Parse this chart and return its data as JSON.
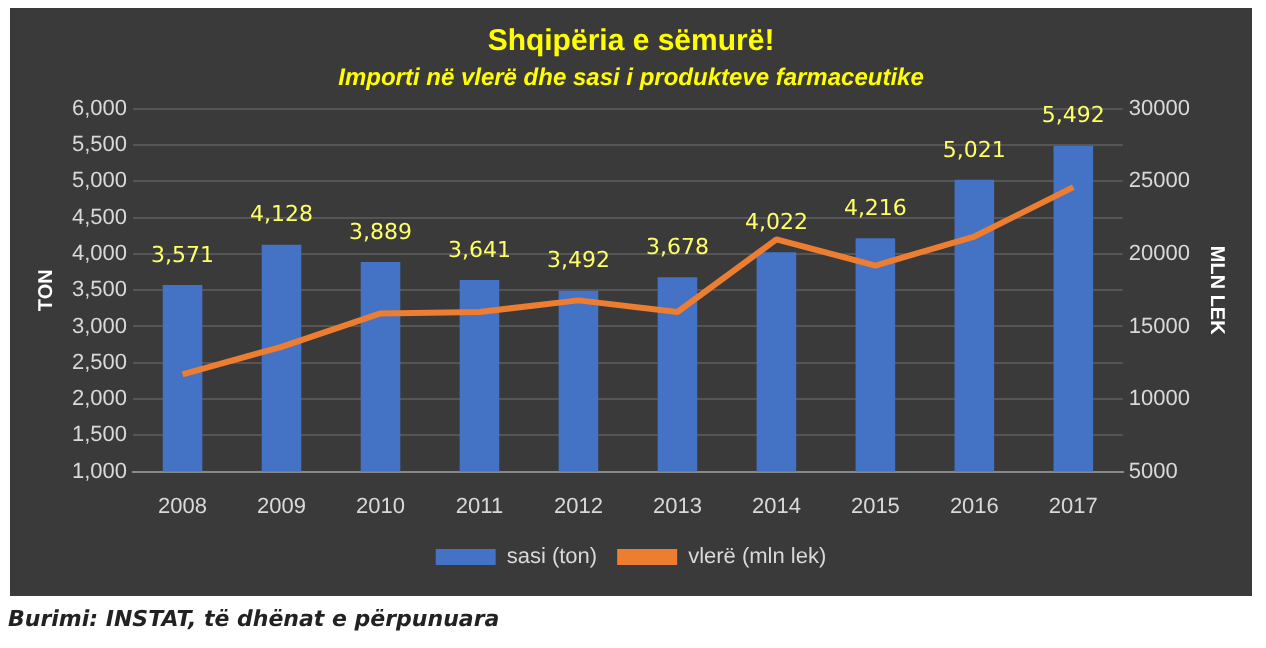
{
  "chart_data": {
    "type": "bar",
    "title": "Shqipëria e sëmurë!",
    "subtitle": "Importi në vlerë dhe sasi i produkteve farmaceutike",
    "ylabel": "TON",
    "y2label": "MLN LEK",
    "categories": [
      "2008",
      "2009",
      "2010",
      "2011",
      "2012",
      "2013",
      "2014",
      "2015",
      "2016",
      "2017"
    ],
    "series": [
      {
        "name": "sasi (ton)",
        "color": "#4472c4",
        "values": [
          3571,
          4128,
          3889,
          3641,
          3492,
          3678,
          4022,
          4216,
          5021,
          5492
        ],
        "value_labels": [
          "3,571",
          "4,128",
          "3,889",
          "3,641",
          "3,492",
          "3,678",
          "4,022",
          "4,216",
          "5,021",
          "5,492"
        ]
      },
      {
        "name": "vlerë (mln lek)",
        "type": "line",
        "axis": "y2",
        "color": "#ed7d31",
        "values": [
          11700,
          13600,
          15900,
          16000,
          16800,
          16000,
          21000,
          19200,
          21200,
          24600
        ]
      }
    ],
    "ylim": [
      1000,
      6000
    ],
    "yticks": [
      {
        "value": 1000,
        "label": "1,000"
      },
      {
        "value": 1500,
        "label": "1,500"
      },
      {
        "value": 2000,
        "label": "2,000"
      },
      {
        "value": 2500,
        "label": "2,500"
      },
      {
        "value": 3000,
        "label": "3,000"
      },
      {
        "value": 3500,
        "label": "3,500"
      },
      {
        "value": 4000,
        "label": "4,000"
      },
      {
        "value": 4500,
        "label": "4,500"
      },
      {
        "value": 5000,
        "label": "5,000"
      },
      {
        "value": 5500,
        "label": "5,500"
      },
      {
        "value": 6000,
        "label": "6,000"
      }
    ],
    "y2lim": [
      5000,
      30000
    ],
    "y2ticks": [
      5000,
      10000,
      15000,
      20000,
      25000,
      30000
    ],
    "grid": "y",
    "legend": "bottom",
    "marker": "none",
    "annotations": [
      "Burimi: INSTAT, të dhënat e përpunuara"
    ]
  }
}
